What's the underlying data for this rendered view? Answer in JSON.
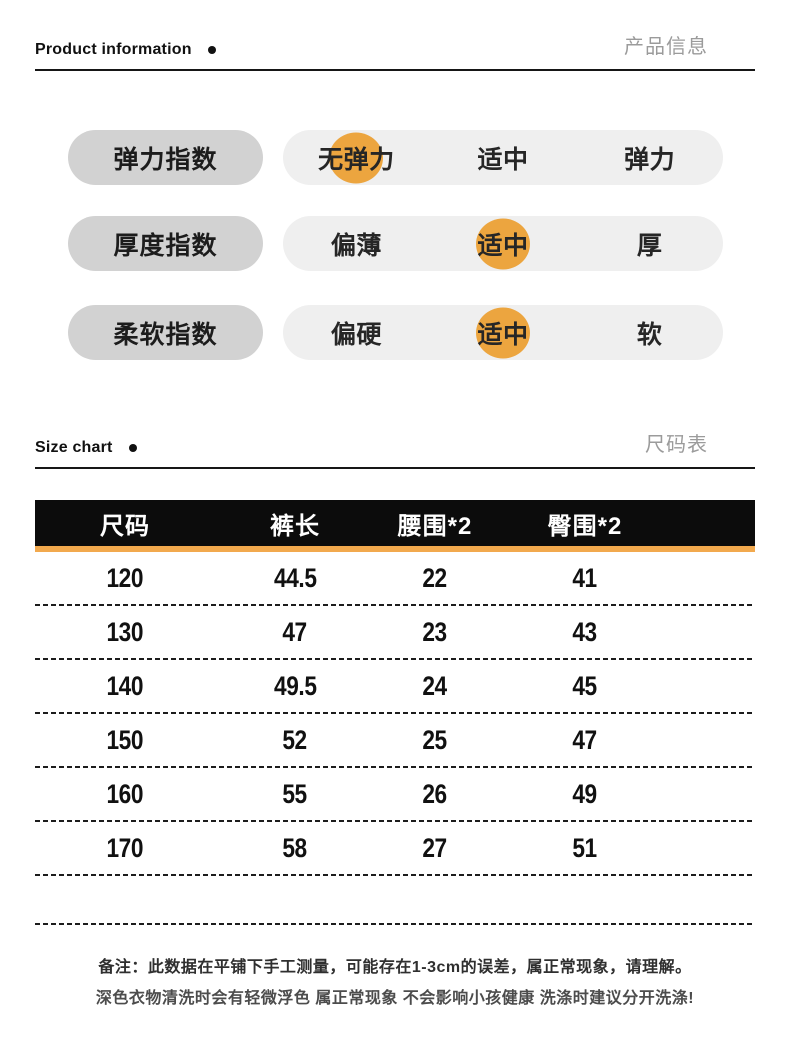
{
  "colors": {
    "highlight_orange": "#ECA53F",
    "strip_orange": "#F2A94E",
    "label_pill_gray": "#D2D2D2",
    "options_pill_gray": "#EFEFEF",
    "header_bar_black": "#0C0C0C",
    "secondary_text_gray": "#9B9B9B"
  },
  "section_product": {
    "title_en": "Product information",
    "title_zh": "产品信息"
  },
  "section_size": {
    "title_en": "Size chart",
    "title_zh": "尺码表"
  },
  "indicators": [
    {
      "label": "弹力指数",
      "options": [
        "无弹力",
        "适中",
        "弹力"
      ],
      "selected_index": 0
    },
    {
      "label": "厚度指数",
      "options": [
        "偏薄",
        "适中",
        "厚"
      ],
      "selected_index": 1
    },
    {
      "label": "柔软指数",
      "options": [
        "偏硬",
        "适中",
        "软"
      ],
      "selected_index": 1
    }
  ],
  "table": {
    "headers": [
      "尺码",
      "裤长",
      "腰围*2",
      "臀围*2"
    ],
    "rows": [
      [
        "120",
        "44.5",
        "22",
        "41"
      ],
      [
        "130",
        "47",
        "23",
        "43"
      ],
      [
        "140",
        "49.5",
        "24",
        "45"
      ],
      [
        "150",
        "52",
        "25",
        "47"
      ],
      [
        "160",
        "55",
        "26",
        "49"
      ],
      [
        "170",
        "58",
        "27",
        "51"
      ]
    ]
  },
  "notes": {
    "line1": "备注：此数据在平铺下手工测量，可能存在1-3cm的误差，属正常现象，请理解。",
    "line2": "深色衣物清洗时会有轻微浮色 属正常现象 不会影响小孩健康 洗涤时建议分开洗涤!"
  }
}
